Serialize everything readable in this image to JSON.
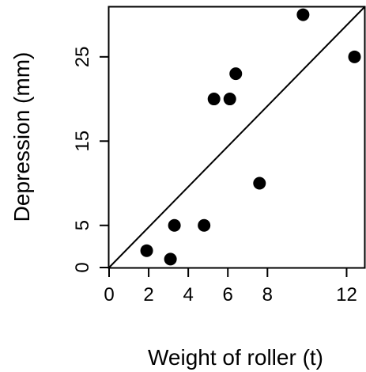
{
  "chart_data": {
    "type": "scatter",
    "title": "",
    "xlabel": "Weight of roller (t)",
    "ylabel": "Depression (mm)",
    "xlim": [
      0,
      12.9
    ],
    "ylim": [
      0,
      30.9
    ],
    "x_ticks": [
      0,
      2,
      4,
      6,
      8,
      12
    ],
    "y_ticks": [
      0,
      5,
      15,
      25
    ],
    "grid": false,
    "legend": "none",
    "series": [
      {
        "x": [
          1.9,
          3.1,
          3.3,
          4.8,
          5.3,
          6.1,
          6.4,
          7.6,
          9.8,
          12.4
        ],
        "y": [
          2,
          1,
          5,
          5,
          20,
          20,
          23,
          10,
          30,
          25
        ]
      }
    ],
    "reference_line": {
      "from": [
        0,
        0
      ],
      "to": [
        12.9,
        30.9
      ]
    },
    "colors": {
      "points": "#000000",
      "axes": "#000000",
      "line": "#000000"
    }
  }
}
